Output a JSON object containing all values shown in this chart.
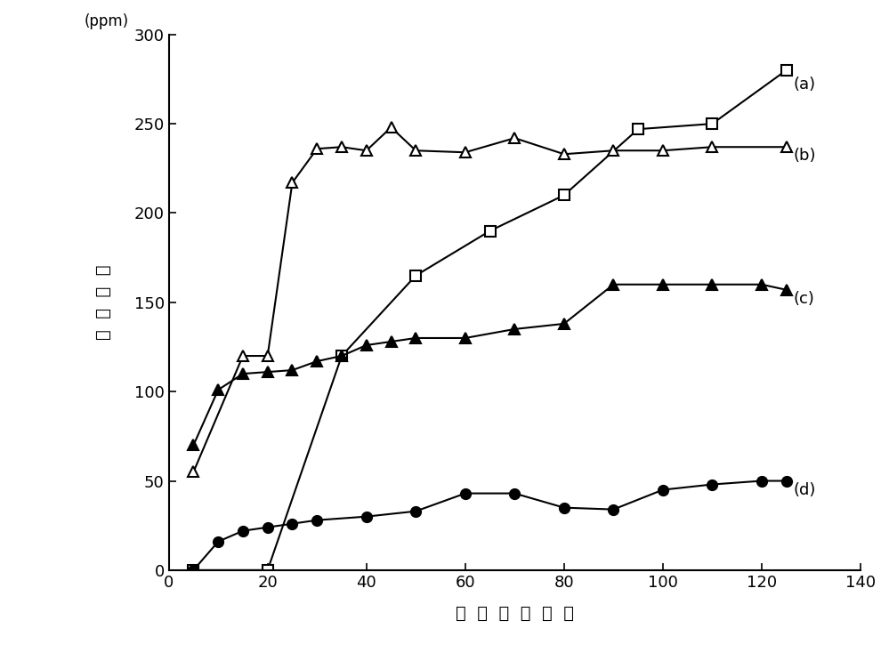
{
  "series_a": {
    "label": "(a)",
    "x": [
      5,
      20,
      35,
      50,
      65,
      80,
      95,
      110,
      125
    ],
    "y": [
      0,
      0,
      120,
      165,
      190,
      210,
      247,
      250,
      280
    ],
    "marker": "s",
    "mfc": "white",
    "mec": "black"
  },
  "series_b": {
    "label": "(b)",
    "x": [
      5,
      15,
      20,
      25,
      30,
      35,
      40,
      45,
      50,
      60,
      70,
      80,
      90,
      100,
      110,
      125
    ],
    "y": [
      55,
      120,
      120,
      217,
      236,
      237,
      235,
      248,
      235,
      234,
      242,
      233,
      235,
      235,
      237,
      237
    ],
    "marker": "^",
    "mfc": "white",
    "mec": "black"
  },
  "series_c": {
    "label": "(c)",
    "x": [
      5,
      10,
      15,
      20,
      25,
      30,
      35,
      40,
      45,
      50,
      60,
      70,
      80,
      90,
      100,
      110,
      120,
      125
    ],
    "y": [
      70,
      101,
      110,
      111,
      112,
      117,
      120,
      126,
      128,
      130,
      130,
      135,
      138,
      160,
      160,
      160,
      160,
      157
    ],
    "marker": "^",
    "mfc": "black",
    "mec": "black"
  },
  "series_d": {
    "label": "(d)",
    "x": [
      5,
      10,
      15,
      20,
      25,
      30,
      40,
      50,
      60,
      70,
      80,
      90,
      100,
      110,
      120,
      125
    ],
    "y": [
      0,
      16,
      22,
      24,
      26,
      28,
      30,
      33,
      43,
      43,
      35,
      34,
      45,
      48,
      50,
      50
    ],
    "marker": "o",
    "mfc": "black",
    "mec": "black"
  },
  "xlabel": "时  间  （  分  钟  ）",
  "ylabel_line1": "(ppm)",
  "ylabel_line2": "尾  气  浓  度",
  "xlim": [
    0,
    140
  ],
  "ylim": [
    0,
    300
  ],
  "xticks": [
    0,
    20,
    40,
    60,
    80,
    100,
    120,
    140
  ],
  "yticks": [
    0,
    50,
    100,
    150,
    200,
    250,
    300
  ],
  "background_color": "#ffffff",
  "line_color": "black",
  "marker_size": 8,
  "line_width": 1.5,
  "label_fontsize": 14,
  "tick_fontsize": 13,
  "annot_fontsize": 13
}
